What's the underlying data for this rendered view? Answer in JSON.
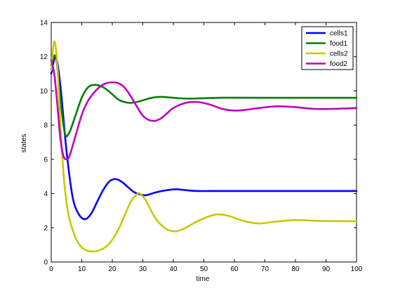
{
  "chart_data": {
    "type": "line",
    "title": "",
    "xlabel": "time",
    "ylabel": "states",
    "xlim": [
      0,
      100
    ],
    "ylim": [
      0,
      14
    ],
    "xticks": [
      0,
      10,
      20,
      30,
      40,
      50,
      60,
      70,
      80,
      90,
      100
    ],
    "yticks": [
      0,
      2,
      4,
      6,
      8,
      10,
      12,
      14
    ],
    "grid": false,
    "legend_position": "top-right",
    "series": [
      {
        "name": "cells1",
        "color": "#0000ff",
        "x": [
          0,
          1.5,
          3,
          5,
          7,
          9,
          11,
          13,
          15,
          17,
          19,
          21,
          23,
          25,
          27,
          29,
          31,
          33,
          35,
          38,
          41,
          44,
          48,
          55,
          65,
          80,
          100
        ],
        "y": [
          11,
          12,
          10.3,
          6.5,
          3.8,
          2.8,
          2.5,
          2.8,
          3.5,
          4.2,
          4.7,
          4.85,
          4.7,
          4.4,
          4.1,
          3.95,
          3.9,
          4.0,
          4.1,
          4.2,
          4.25,
          4.2,
          4.15,
          4.15,
          4.15,
          4.15,
          4.15
        ]
      },
      {
        "name": "food1",
        "color": "#008000",
        "x": [
          0,
          1.5,
          3,
          4.5,
          6,
          8,
          10,
          12,
          14,
          16,
          18,
          20,
          22,
          24,
          26,
          28,
          30,
          33,
          36,
          40,
          45,
          55,
          70,
          100
        ],
        "y": [
          11.5,
          12,
          9.5,
          7.5,
          7.6,
          8.6,
          9.6,
          10.2,
          10.35,
          10.3,
          10.1,
          9.8,
          9.5,
          9.35,
          9.3,
          9.35,
          9.45,
          9.6,
          9.65,
          9.6,
          9.55,
          9.6,
          9.6,
          9.6
        ]
      },
      {
        "name": "cells2",
        "color": "#c8c800",
        "x": [
          0,
          1,
          2,
          3,
          4,
          5,
          6,
          8,
          10,
          12,
          14,
          16,
          18,
          20,
          22,
          24,
          26,
          28,
          29,
          31,
          33,
          35,
          38,
          41,
          44,
          47,
          50,
          54,
          58,
          63,
          68,
          73,
          80,
          88,
          100
        ],
        "y": [
          11.2,
          12.9,
          11.5,
          8,
          5.2,
          3.5,
          2.5,
          1.4,
          0.85,
          0.65,
          0.62,
          0.7,
          0.9,
          1.3,
          1.9,
          2.7,
          3.5,
          3.95,
          4.0,
          3.6,
          2.9,
          2.35,
          1.9,
          1.8,
          2.0,
          2.3,
          2.55,
          2.78,
          2.7,
          2.4,
          2.25,
          2.35,
          2.45,
          2.4,
          2.38
        ]
      },
      {
        "name": "food2",
        "color": "#c000c0",
        "x": [
          0,
          1,
          2,
          3,
          4,
          5,
          6,
          8,
          10,
          12,
          14,
          16,
          18,
          20,
          22,
          24,
          26,
          28,
          30,
          32,
          34,
          36,
          38,
          40,
          44,
          48,
          52,
          56,
          60,
          64,
          68,
          74,
          80,
          86,
          92,
          100
        ],
        "y": [
          11.8,
          11,
          9.2,
          7.2,
          6.2,
          6.0,
          6.2,
          7.4,
          8.6,
          9.4,
          9.9,
          10.25,
          10.45,
          10.5,
          10.45,
          10.2,
          9.7,
          9.1,
          8.55,
          8.3,
          8.25,
          8.4,
          8.7,
          9.0,
          9.3,
          9.35,
          9.2,
          8.95,
          8.85,
          8.9,
          9.0,
          9.1,
          9.05,
          8.95,
          8.95,
          9.0
        ]
      }
    ]
  }
}
